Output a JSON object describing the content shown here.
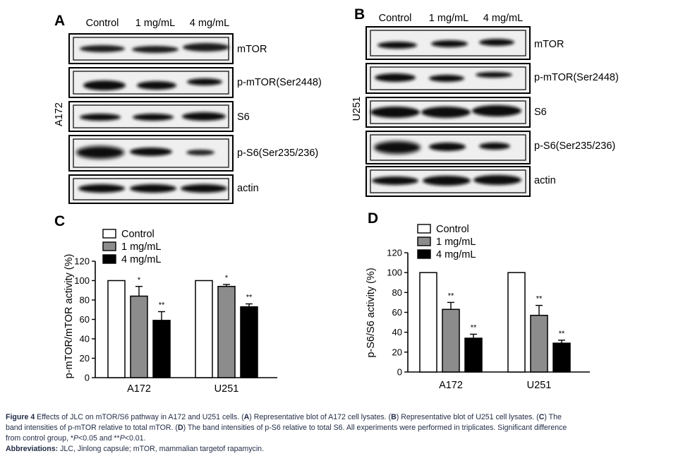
{
  "colors": {
    "control": "#ffffff",
    "mg1": "#8c8c8c",
    "mg4": "#000000",
    "blot_background": "#efefef",
    "caption_text": "#1f2a44"
  },
  "blot_A": {
    "letter": "A",
    "cell_line": "A172",
    "lanes": [
      "Control",
      "1 mg/mL",
      "4 mg/mL"
    ],
    "rows": [
      "mTOR",
      "p-mTOR(Ser2448)",
      "S6",
      "p-S6(Ser235/236)",
      "actin"
    ]
  },
  "blot_B": {
    "letter": "B",
    "cell_line": "U251",
    "lanes": [
      "Control",
      "1 mg/mL",
      "4 mg/mL"
    ],
    "rows": [
      "mTOR",
      "p-mTOR(Ser2448)",
      "S6",
      "p-S6(Ser235/236)",
      "actin"
    ]
  },
  "chart_data": [
    {
      "letter": "C",
      "type": "bar",
      "ylabel": "p-mTOR/mTOR activity (%)",
      "xlabel": "",
      "ylim": [
        0,
        120
      ],
      "yticks": [
        0,
        20,
        40,
        60,
        80,
        100,
        120
      ],
      "categories": [
        "A172",
        "U251"
      ],
      "legend_position": "top-left",
      "series": [
        {
          "name": "Control",
          "values": [
            100,
            100
          ],
          "errors": [
            0,
            0
          ],
          "sig": [
            "",
            ""
          ]
        },
        {
          "name": "1 mg/mL",
          "values": [
            84,
            94
          ],
          "errors": [
            10,
            2
          ],
          "sig": [
            "*",
            "*"
          ]
        },
        {
          "name": "4 mg/mL",
          "values": [
            59,
            73
          ],
          "errors": [
            9,
            3
          ],
          "sig": [
            "**",
            "**"
          ]
        }
      ]
    },
    {
      "letter": "D",
      "type": "bar",
      "ylabel": "p-S6/S6 activity (%)",
      "xlabel": "",
      "ylim": [
        0,
        120
      ],
      "yticks": [
        0,
        20,
        40,
        60,
        80,
        100,
        120
      ],
      "categories": [
        "A172",
        "U251"
      ],
      "legend_position": "top-left",
      "series": [
        {
          "name": "Control",
          "values": [
            100,
            100
          ],
          "errors": [
            0,
            0
          ],
          "sig": [
            "",
            ""
          ]
        },
        {
          "name": "1 mg/mL",
          "values": [
            63,
            57
          ],
          "errors": [
            7,
            10
          ],
          "sig": [
            "**",
            "**"
          ]
        },
        {
          "name": "4 mg/mL",
          "values": [
            34,
            29
          ],
          "errors": [
            4,
            3
          ],
          "sig": [
            "**",
            "**"
          ]
        }
      ]
    }
  ],
  "caption": {
    "figure_label": "Figure 4",
    "line1_title": " Effects of JLC on mTOR/S6 pathway in A172 and U251 cells. (",
    "A": "A",
    "line1_a": ") Representative blot of A172 cell lysates. (",
    "B": "B",
    "line1_b": ") Representative blot of U251 cell lysates. (",
    "C": "C",
    "line1_c": ") The",
    "line2_a": "band intensities of p-mTOR relative to total mTOR. (",
    "D": "D",
    "line2_b": ") The band intensities of p-S6 relative to total S6. All experiments were performed in triplicates. Significant difference",
    "line3_a": "from control group, *",
    "P1": "P",
    "line3_b": "<0.05 and **",
    "P2": "P",
    "line3_c": "<0.01.",
    "abbr_label": "Abbreviations:",
    "abbr_text": " JLC, Jinlong capsule; mTOR, mammalian targetof rapamycin."
  }
}
